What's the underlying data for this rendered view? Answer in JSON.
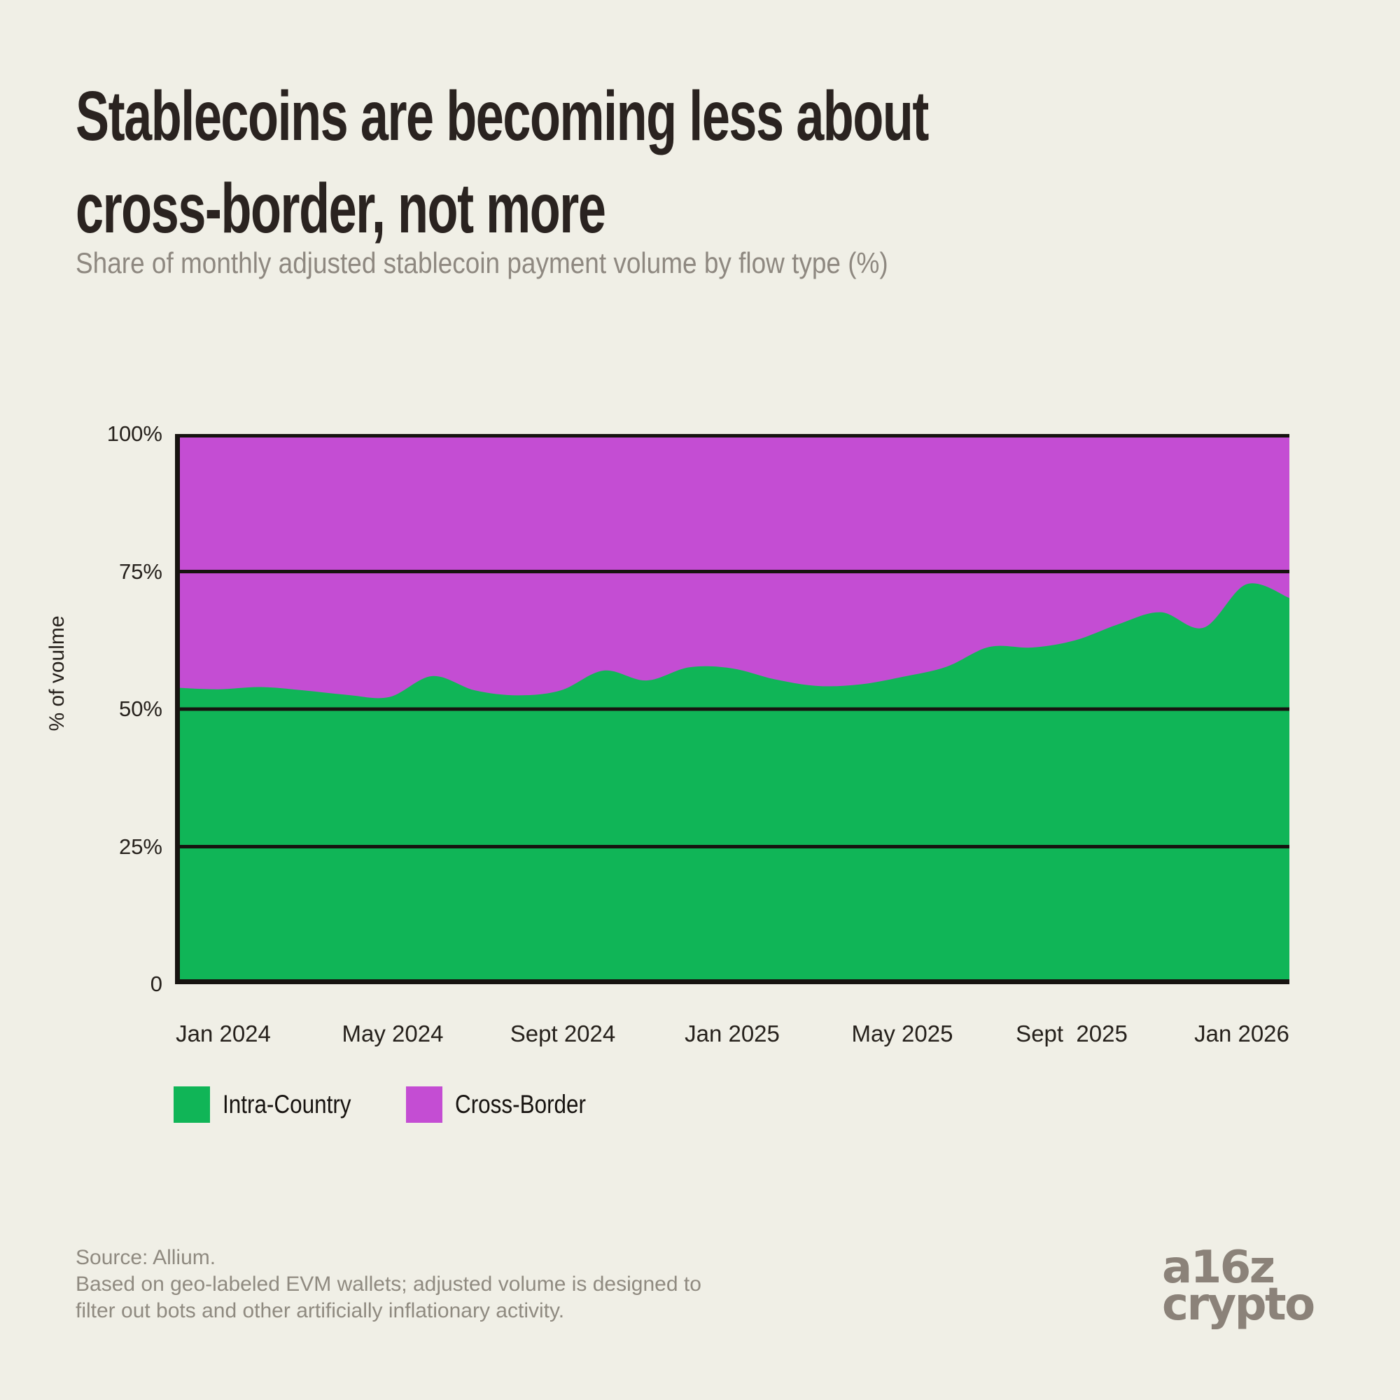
{
  "header": {
    "title_line1": "Stablecoins are becoming less about",
    "title_line2": "cross-border, not more",
    "subtitle": "Share of monthly adjusted stablecoin payment volume by flow type (%)"
  },
  "chart_data": {
    "type": "area",
    "stacked": true,
    "title": "Stablecoins are becoming less about cross-border, not more",
    "subtitle": "Share of monthly adjusted stablecoin payment volume by flow type (%)",
    "ylabel": "% of voulme",
    "ylim": [
      0,
      100
    ],
    "grid": "horizontal",
    "legend_position": "bottom-left",
    "x": [
      "Dec 2023",
      "Jan 2024",
      "Feb 2024",
      "Mar 2024",
      "Apr 2024",
      "May 2024",
      "Jun 2024",
      "Jul 2024",
      "Aug 2024",
      "Sep 2024",
      "Oct 2024",
      "Nov 2024",
      "Dec 2024",
      "Jan 2025",
      "Feb 2025",
      "Mar 2025",
      "Apr 2025",
      "May 2025",
      "Jun 2025",
      "Jul 2025",
      "Aug 2025",
      "Sep 2025",
      "Oct 2025",
      "Nov 2025",
      "Dec 2025",
      "Jan 2026",
      "Feb 2026"
    ],
    "series": [
      {
        "name": "Intra-Country",
        "color": "#10B557",
        "values": [
          53.9,
          53.6,
          54.0,
          53.4,
          52.6,
          52.2,
          56.0,
          53.4,
          52.5,
          53.4,
          57.0,
          55.2,
          57.6,
          57.4,
          55.4,
          54.2,
          54.5,
          55.9,
          57.7,
          61.3,
          61.2,
          62.5,
          65.4,
          67.6,
          64.8,
          72.7,
          70.2
        ]
      },
      {
        "name": "Cross-Border",
        "color": "#C44DD3",
        "values": [
          46.1,
          46.4,
          46.0,
          46.6,
          47.4,
          47.8,
          44.0,
          46.6,
          47.5,
          46.6,
          43.0,
          44.8,
          42.4,
          42.6,
          44.6,
          45.8,
          45.5,
          44.1,
          42.3,
          38.7,
          38.8,
          37.5,
          34.6,
          32.4,
          35.2,
          27.3,
          29.8
        ]
      }
    ],
    "y_ticks": [
      "100%",
      "75%",
      "50%",
      "25%",
      "0"
    ],
    "x_ticks": [
      "Jan 2024",
      "May 2024",
      "Sept 2024",
      "Jan 2025",
      "May 2025",
      "Sept  2025",
      "Jan 2026"
    ],
    "axis_color": "#171310"
  },
  "footer": {
    "source_line1": "Source: Allium.",
    "source_line2": "Based on geo-labeled EVM wallets; adjusted volume is designed to",
    "source_line3": "filter out bots and other artificially inflationary activity.",
    "logo_line1": "a16z",
    "logo_line2": "crypto"
  }
}
